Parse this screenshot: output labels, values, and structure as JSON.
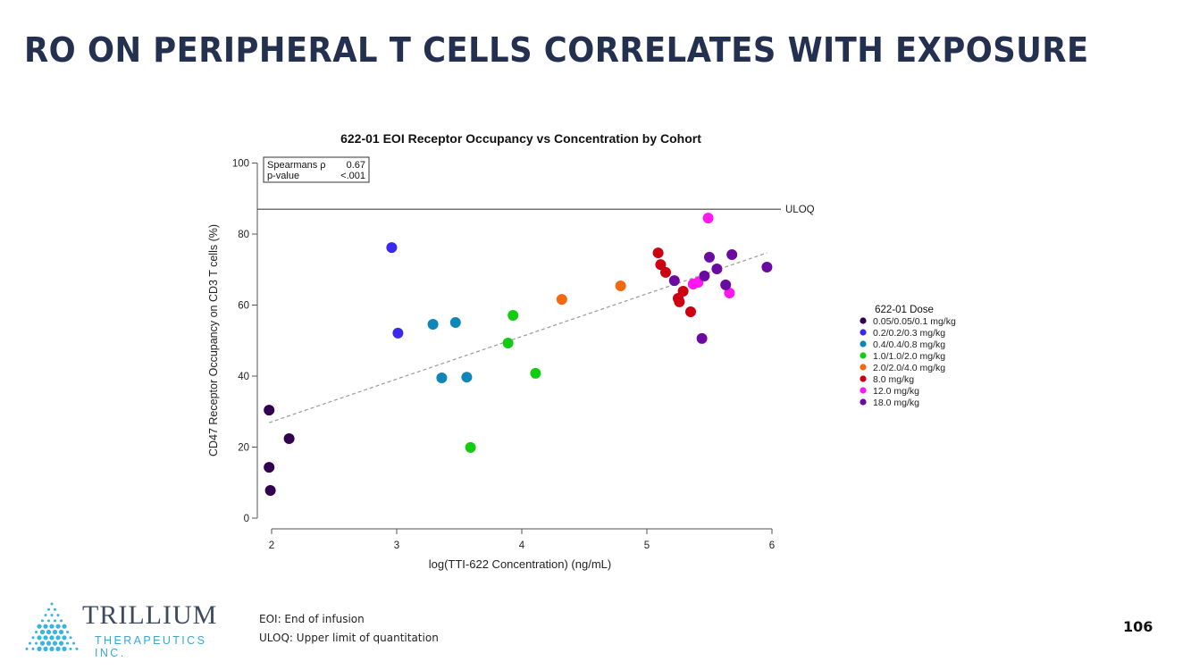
{
  "slide": {
    "title": "RO ON PERIPHERAL T CELLS CORRELATES WITH EXPOSURE",
    "page_number": "106",
    "footnotes": [
      "EOI: End of infusion",
      "ULOQ: Upper limit of quantitation"
    ],
    "logo": {
      "name": "TRILLIUM",
      "subtitle": "THERAPEUTICS INC.",
      "icon": "trillium-dots-logo-icon"
    },
    "title_color": "#24304f"
  },
  "chart_data": {
    "type": "scatter",
    "title": "622-01 EOI Receptor Occupancy vs Concentration by Cohort",
    "xlabel": "log(TTI-622 Concentration) (ng/mL)",
    "ylabel": "CD47 Receptor Occupancy on CD3 T cells (%)",
    "xlim": [
      2,
      6
    ],
    "ylim": [
      0,
      100
    ],
    "xticks": [
      2,
      3,
      4,
      5,
      6
    ],
    "yticks": [
      0,
      20,
      40,
      60,
      80,
      100
    ],
    "grid": false,
    "stats_box": {
      "rows": [
        [
          "Spearmans ρ",
          "0.67"
        ],
        [
          "p-value",
          "<.001"
        ]
      ],
      "placement": "top-left"
    },
    "reference_line": {
      "label": "ULOQ",
      "y": 87
    },
    "trend_line": {
      "style": "dashed",
      "x": [
        1.98,
        5.96
      ],
      "y": [
        26.9,
        74.7
      ]
    },
    "legend": {
      "title": "622-01 Dose",
      "placement": "right"
    },
    "series": [
      {
        "name": "0.05/0.05/0.1 mg/kg",
        "color": "#33004f",
        "points": [
          [
            1.98,
            30.4
          ],
          [
            2.14,
            22.4
          ],
          [
            1.98,
            14.3
          ],
          [
            1.99,
            7.8
          ]
        ]
      },
      {
        "name": "0.2/0.2/0.3 mg/kg",
        "color": "#3a28ef",
        "points": [
          [
            2.96,
            76.2
          ],
          [
            3.01,
            52.1
          ]
        ]
      },
      {
        "name": "0.4/0.4/0.8 mg/kg",
        "color": "#0f86b8",
        "points": [
          [
            3.29,
            54.6
          ],
          [
            3.47,
            55.1
          ],
          [
            3.36,
            39.5
          ],
          [
            3.56,
            39.7
          ]
        ]
      },
      {
        "name": "1.0/1.0/2.0 mg/kg",
        "color": "#12cc12",
        "points": [
          [
            3.93,
            57.1
          ],
          [
            3.89,
            49.3
          ],
          [
            4.11,
            40.8
          ],
          [
            3.59,
            19.9
          ]
        ]
      },
      {
        "name": "2.0/2.0/4.0 mg/kg",
        "color": "#f2690f",
        "points": [
          [
            4.32,
            61.6
          ],
          [
            4.79,
            65.4
          ]
        ]
      },
      {
        "name": "8.0 mg/kg",
        "color": "#cc0010",
        "points": [
          [
            5.09,
            74.7
          ],
          [
            5.11,
            71.4
          ],
          [
            5.15,
            69.2
          ],
          [
            5.29,
            63.9
          ],
          [
            5.25,
            61.9
          ],
          [
            5.26,
            60.9
          ],
          [
            5.35,
            58.1
          ]
        ]
      },
      {
        "name": "12.0 mg/kg",
        "color": "#ff17ee",
        "points": [
          [
            5.49,
            84.5
          ],
          [
            5.37,
            65.9
          ],
          [
            5.41,
            66.4
          ],
          [
            5.66,
            63.4
          ]
        ]
      },
      {
        "name": "18.0 mg/kg",
        "color": "#6a0aa0",
        "points": [
          [
            5.5,
            73.5
          ],
          [
            5.68,
            74.2
          ],
          [
            5.22,
            66.9
          ],
          [
            5.46,
            68.2
          ],
          [
            5.56,
            70.2
          ],
          [
            5.96,
            70.7
          ],
          [
            5.63,
            65.7
          ],
          [
            5.44,
            50.6
          ]
        ]
      }
    ]
  }
}
